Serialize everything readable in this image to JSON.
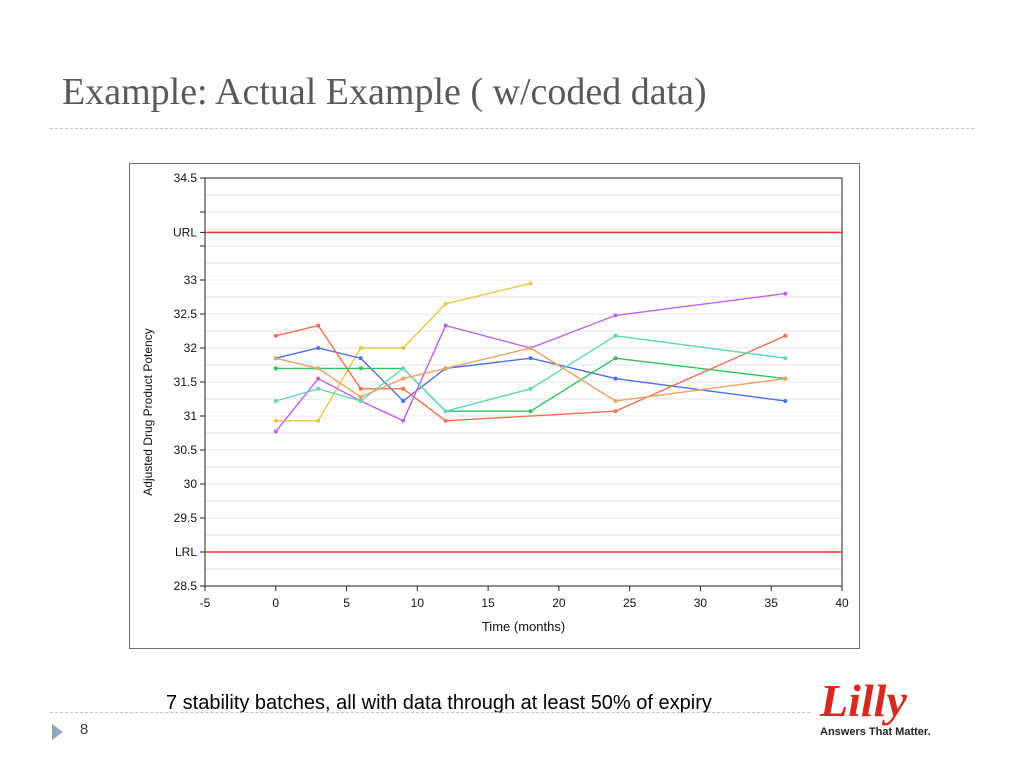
{
  "slide": {
    "title": "Example: Actual Example ( w/coded data)",
    "caption": "7 stability batches, all with data through at least 50% of expiry",
    "page_number": "8"
  },
  "logo": {
    "text": "Lilly",
    "tagline": "Answers That Matter.",
    "color": "#d52b1e"
  },
  "chart_data": {
    "type": "line",
    "xlabel": "Time (months)",
    "ylabel": "Adjusted Drug Product Potency",
    "xlim": [
      -5,
      40
    ],
    "ylim": [
      28.5,
      34.5
    ],
    "x_ticks": [
      "-5",
      "0",
      "5",
      "10",
      "15",
      "20",
      "25",
      "30",
      "35",
      "40"
    ],
    "y_ticks": [
      {
        "value": 28.5,
        "label": "28.5"
      },
      {
        "value": 29.5,
        "label": "29.5"
      },
      {
        "value": 30,
        "label": "30"
      },
      {
        "value": 30.5,
        "label": "30.5"
      },
      {
        "value": 31,
        "label": "31"
      },
      {
        "value": 31.5,
        "label": "31.5"
      },
      {
        "value": 32,
        "label": "32"
      },
      {
        "value": 32.5,
        "label": "32.5"
      },
      {
        "value": 33,
        "label": "33"
      },
      {
        "value": 34.5,
        "label": "34.5"
      }
    ],
    "grid": true,
    "reference_lines": [
      {
        "label": "URL",
        "value": 33.7,
        "color": "#e8392b"
      },
      {
        "label": "LRL",
        "value": 29.0,
        "color": "#e8392b"
      }
    ],
    "series": [
      {
        "color": "#e8c840",
        "points": [
          [
            0,
            30.93
          ],
          [
            3,
            30.93
          ],
          [
            6,
            32.0
          ],
          [
            9,
            32.0
          ],
          [
            12,
            32.65
          ],
          [
            18,
            32.95
          ]
        ]
      },
      {
        "color": "#4a6fe8",
        "points": [
          [
            0,
            31.85
          ],
          [
            3,
            32.0
          ],
          [
            6,
            31.85
          ],
          [
            9,
            31.22
          ],
          [
            12,
            31.7
          ],
          [
            18,
            31.85
          ],
          [
            24,
            31.55
          ],
          [
            36,
            31.22
          ]
        ]
      },
      {
        "color": "#f07050",
        "points": [
          [
            0,
            32.18
          ],
          [
            3,
            32.33
          ],
          [
            6,
            31.4
          ],
          [
            9,
            31.4
          ],
          [
            12,
            30.93
          ],
          [
            24,
            31.07
          ],
          [
            36,
            32.18
          ]
        ]
      },
      {
        "color": "#30c060",
        "points": [
          [
            0,
            31.7
          ],
          [
            3,
            31.7
          ],
          [
            6,
            31.7
          ],
          [
            9,
            31.7
          ],
          [
            12,
            31.07
          ],
          [
            18,
            31.07
          ],
          [
            24,
            31.85
          ],
          [
            36,
            31.55
          ]
        ]
      },
      {
        "color": "#c060f0",
        "points": [
          [
            0,
            30.77
          ],
          [
            3,
            31.55
          ],
          [
            6,
            31.22
          ],
          [
            9,
            30.93
          ],
          [
            12,
            32.33
          ],
          [
            18,
            32.0
          ],
          [
            24,
            32.48
          ],
          [
            36,
            32.8
          ]
        ]
      },
      {
        "color": "#60d8b0",
        "points": [
          [
            0,
            31.22
          ],
          [
            3,
            31.4
          ],
          [
            6,
            31.22
          ],
          [
            9,
            31.7
          ],
          [
            12,
            31.07
          ],
          [
            18,
            31.4
          ],
          [
            24,
            32.18
          ],
          [
            36,
            31.85
          ]
        ]
      },
      {
        "color": "#f0a060",
        "points": [
          [
            0,
            31.85
          ],
          [
            3,
            31.7
          ],
          [
            6,
            31.28
          ],
          [
            9,
            31.55
          ],
          [
            12,
            31.7
          ],
          [
            18,
            32.0
          ],
          [
            24,
            31.22
          ],
          [
            36,
            31.55
          ]
        ]
      }
    ]
  }
}
